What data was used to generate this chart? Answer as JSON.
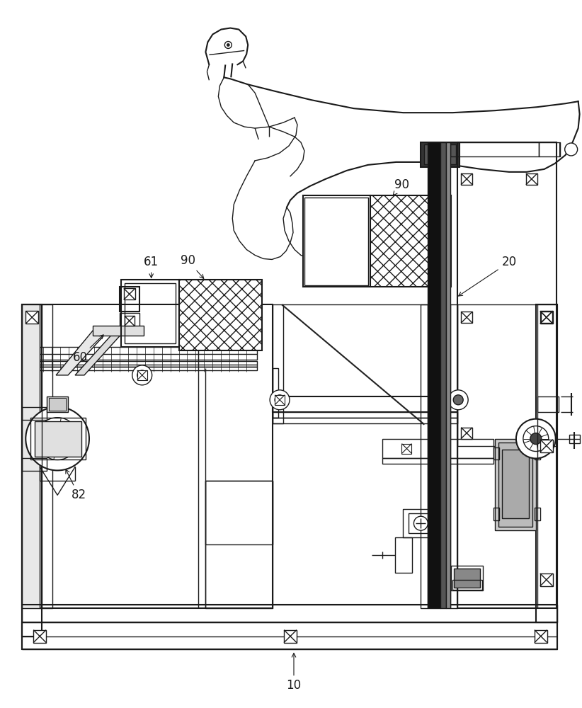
{
  "bg_color": "#ffffff",
  "line_color": "#1a1a1a",
  "dark_color": "#111111",
  "gray_color": "#888888",
  "light_gray": "#cccccc"
}
